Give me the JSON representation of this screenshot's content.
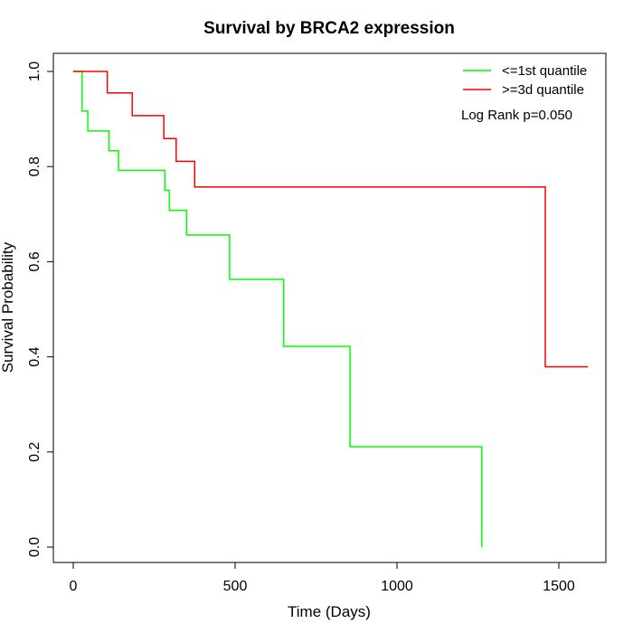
{
  "chart_data": {
    "type": "line",
    "step": true,
    "title": "Survival by BRCA2 expression",
    "xlabel": "Time (Days)",
    "ylabel": "Survival Probability",
    "xlim": [
      0,
      1650
    ],
    "ylim": [
      0,
      1.0
    ],
    "xticks": [
      0,
      500,
      1000,
      1500
    ],
    "yticks": [
      0.0,
      0.2,
      0.4,
      0.6,
      0.8,
      1.0
    ],
    "xtick_labels": [
      "0",
      "500",
      "1000",
      "1500"
    ],
    "ytick_labels": [
      "0.0",
      "0.2",
      "0.4",
      "0.6",
      "0.8",
      "1.0"
    ],
    "grid": false,
    "legend_position": "top-right",
    "annotation": "Log Rank p=0.050",
    "series": [
      {
        "name": "<=1st quantile",
        "color": "#00ff00",
        "x": [
          0,
          25,
          27,
          45,
          110,
          140,
          283,
          297,
          310,
          350,
          483,
          650,
          855,
          1262,
          1262
        ],
        "y": [
          1.0,
          1.0,
          0.917,
          0.875,
          0.833,
          0.792,
          0.75,
          0.708,
          0.708,
          0.656,
          0.563,
          0.422,
          0.211,
          0.211,
          0.0
        ]
      },
      {
        "name": ">=3d quantile",
        "color": "#ff0000",
        "x": [
          0,
          105,
          182,
          280,
          318,
          375,
          1458,
          1590
        ],
        "y": [
          1.0,
          0.955,
          0.907,
          0.859,
          0.811,
          0.757,
          0.379,
          0.379
        ]
      }
    ]
  }
}
